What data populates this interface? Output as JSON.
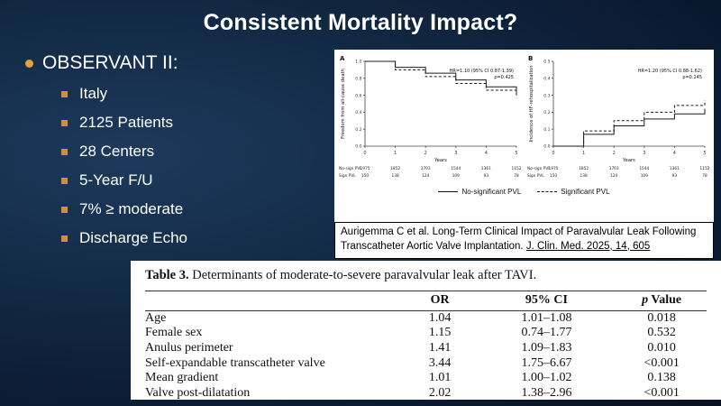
{
  "slide": {
    "title": "Consistent Mortality Impact?",
    "bullet": {
      "label": "OBSERVANT II:",
      "items": [
        "Italy",
        "2125 Patients",
        "28 Centers",
        "5-Year F/U",
        "7% ≥ moderate",
        "Discharge Echo"
      ]
    },
    "citation": {
      "text": "Aurigemma C et al. Long-Term Clinical Impact of Paravalvular Leak Following Transcatheter Aortic Valve Implantation. ",
      "journal": "J. Clin. Med. 2025, 14, 605"
    }
  },
  "figure": {
    "legend": [
      {
        "label": "No-significant PVL",
        "style": "solid"
      },
      {
        "label": "Significant PVL",
        "style": "dashed"
      }
    ]
  },
  "chart_data": [
    {
      "type": "line",
      "panel": "A",
      "ylabel": "Freedom from all-cause death",
      "xlabel": "Years",
      "xlim": [
        0,
        5
      ],
      "ylim": [
        0,
        1
      ],
      "xticks": [
        0,
        1,
        2,
        3,
        4,
        5
      ],
      "yticks": [
        0.0,
        0.2,
        0.4,
        0.6,
        0.8,
        1.0
      ],
      "annotation": "HR=1.10 (95% CI 0.87-1.39)",
      "annotation2": "p=0.425",
      "x": [
        0,
        1,
        2,
        3,
        4,
        5
      ],
      "series": [
        {
          "name": "No-significant PVL",
          "style": "solid",
          "values": [
            1.0,
            0.93,
            0.86,
            0.78,
            0.7,
            0.62
          ]
        },
        {
          "name": "Significant PVL",
          "style": "dashed",
          "values": [
            1.0,
            0.9,
            0.82,
            0.74,
            0.66,
            0.57
          ]
        }
      ],
      "numbers_at_risk": [
        {
          "label": "No-sign PVL",
          "values": [
            1975,
            1852,
            1703,
            1544,
            1361,
            1152
          ]
        },
        {
          "label": "Sign PVL",
          "values": [
            150,
            138,
            124,
            109,
            93,
            78
          ]
        }
      ]
    },
    {
      "type": "line",
      "panel": "B",
      "ylabel": "Incidence of HF-rehospitalization",
      "xlabel": "Years",
      "xlim": [
        0,
        5
      ],
      "ylim": [
        0,
        0.5
      ],
      "xticks": [
        0,
        1,
        2,
        3,
        4,
        5
      ],
      "yticks": [
        0.0,
        0.1,
        0.2,
        0.3,
        0.4,
        0.5
      ],
      "annotation": "HR=1.20 (95% CI 0.88-1.62)",
      "annotation2": "p=0.245",
      "x": [
        0,
        1,
        2,
        3,
        4,
        5
      ],
      "series": [
        {
          "name": "No-significant PVL",
          "style": "solid",
          "values": [
            0.0,
            0.07,
            0.12,
            0.16,
            0.19,
            0.22
          ]
        },
        {
          "name": "Significant PVL",
          "style": "dashed",
          "values": [
            0.0,
            0.09,
            0.15,
            0.2,
            0.24,
            0.27
          ]
        }
      ],
      "numbers_at_risk": [
        {
          "label": "No-sign PVL",
          "values": [
            1975,
            1852,
            1703,
            1544,
            1361,
            1152
          ]
        },
        {
          "label": "Sign PVL",
          "values": [
            150,
            138,
            124,
            109,
            93,
            78
          ]
        }
      ]
    }
  ],
  "table": {
    "title_label": "Table 3.",
    "title_text": " Determinants of moderate-to-severe paravalvular leak after TAVI.",
    "col_or": "OR",
    "col_ci": "95% CI",
    "col_p_italic": "p",
    "col_p_rest": " Value",
    "rows": [
      [
        "Age",
        "1.04",
        "1.01–1.08",
        "0.018"
      ],
      [
        "Female sex",
        "1.15",
        "0.74–1.77",
        "0.532"
      ],
      [
        "Anulus perimeter",
        "1.41",
        "1.09–1.83",
        "0.010"
      ],
      [
        "Self-expandable transcatheter valve",
        "3.44",
        "1.75–6.67",
        "<0.001"
      ],
      [
        "Mean gradient",
        "1.01",
        "1.00–1.02",
        "0.138"
      ],
      [
        "Valve post-dilatation",
        "2.02",
        "1.38–2.96",
        "<0.001"
      ]
    ]
  }
}
